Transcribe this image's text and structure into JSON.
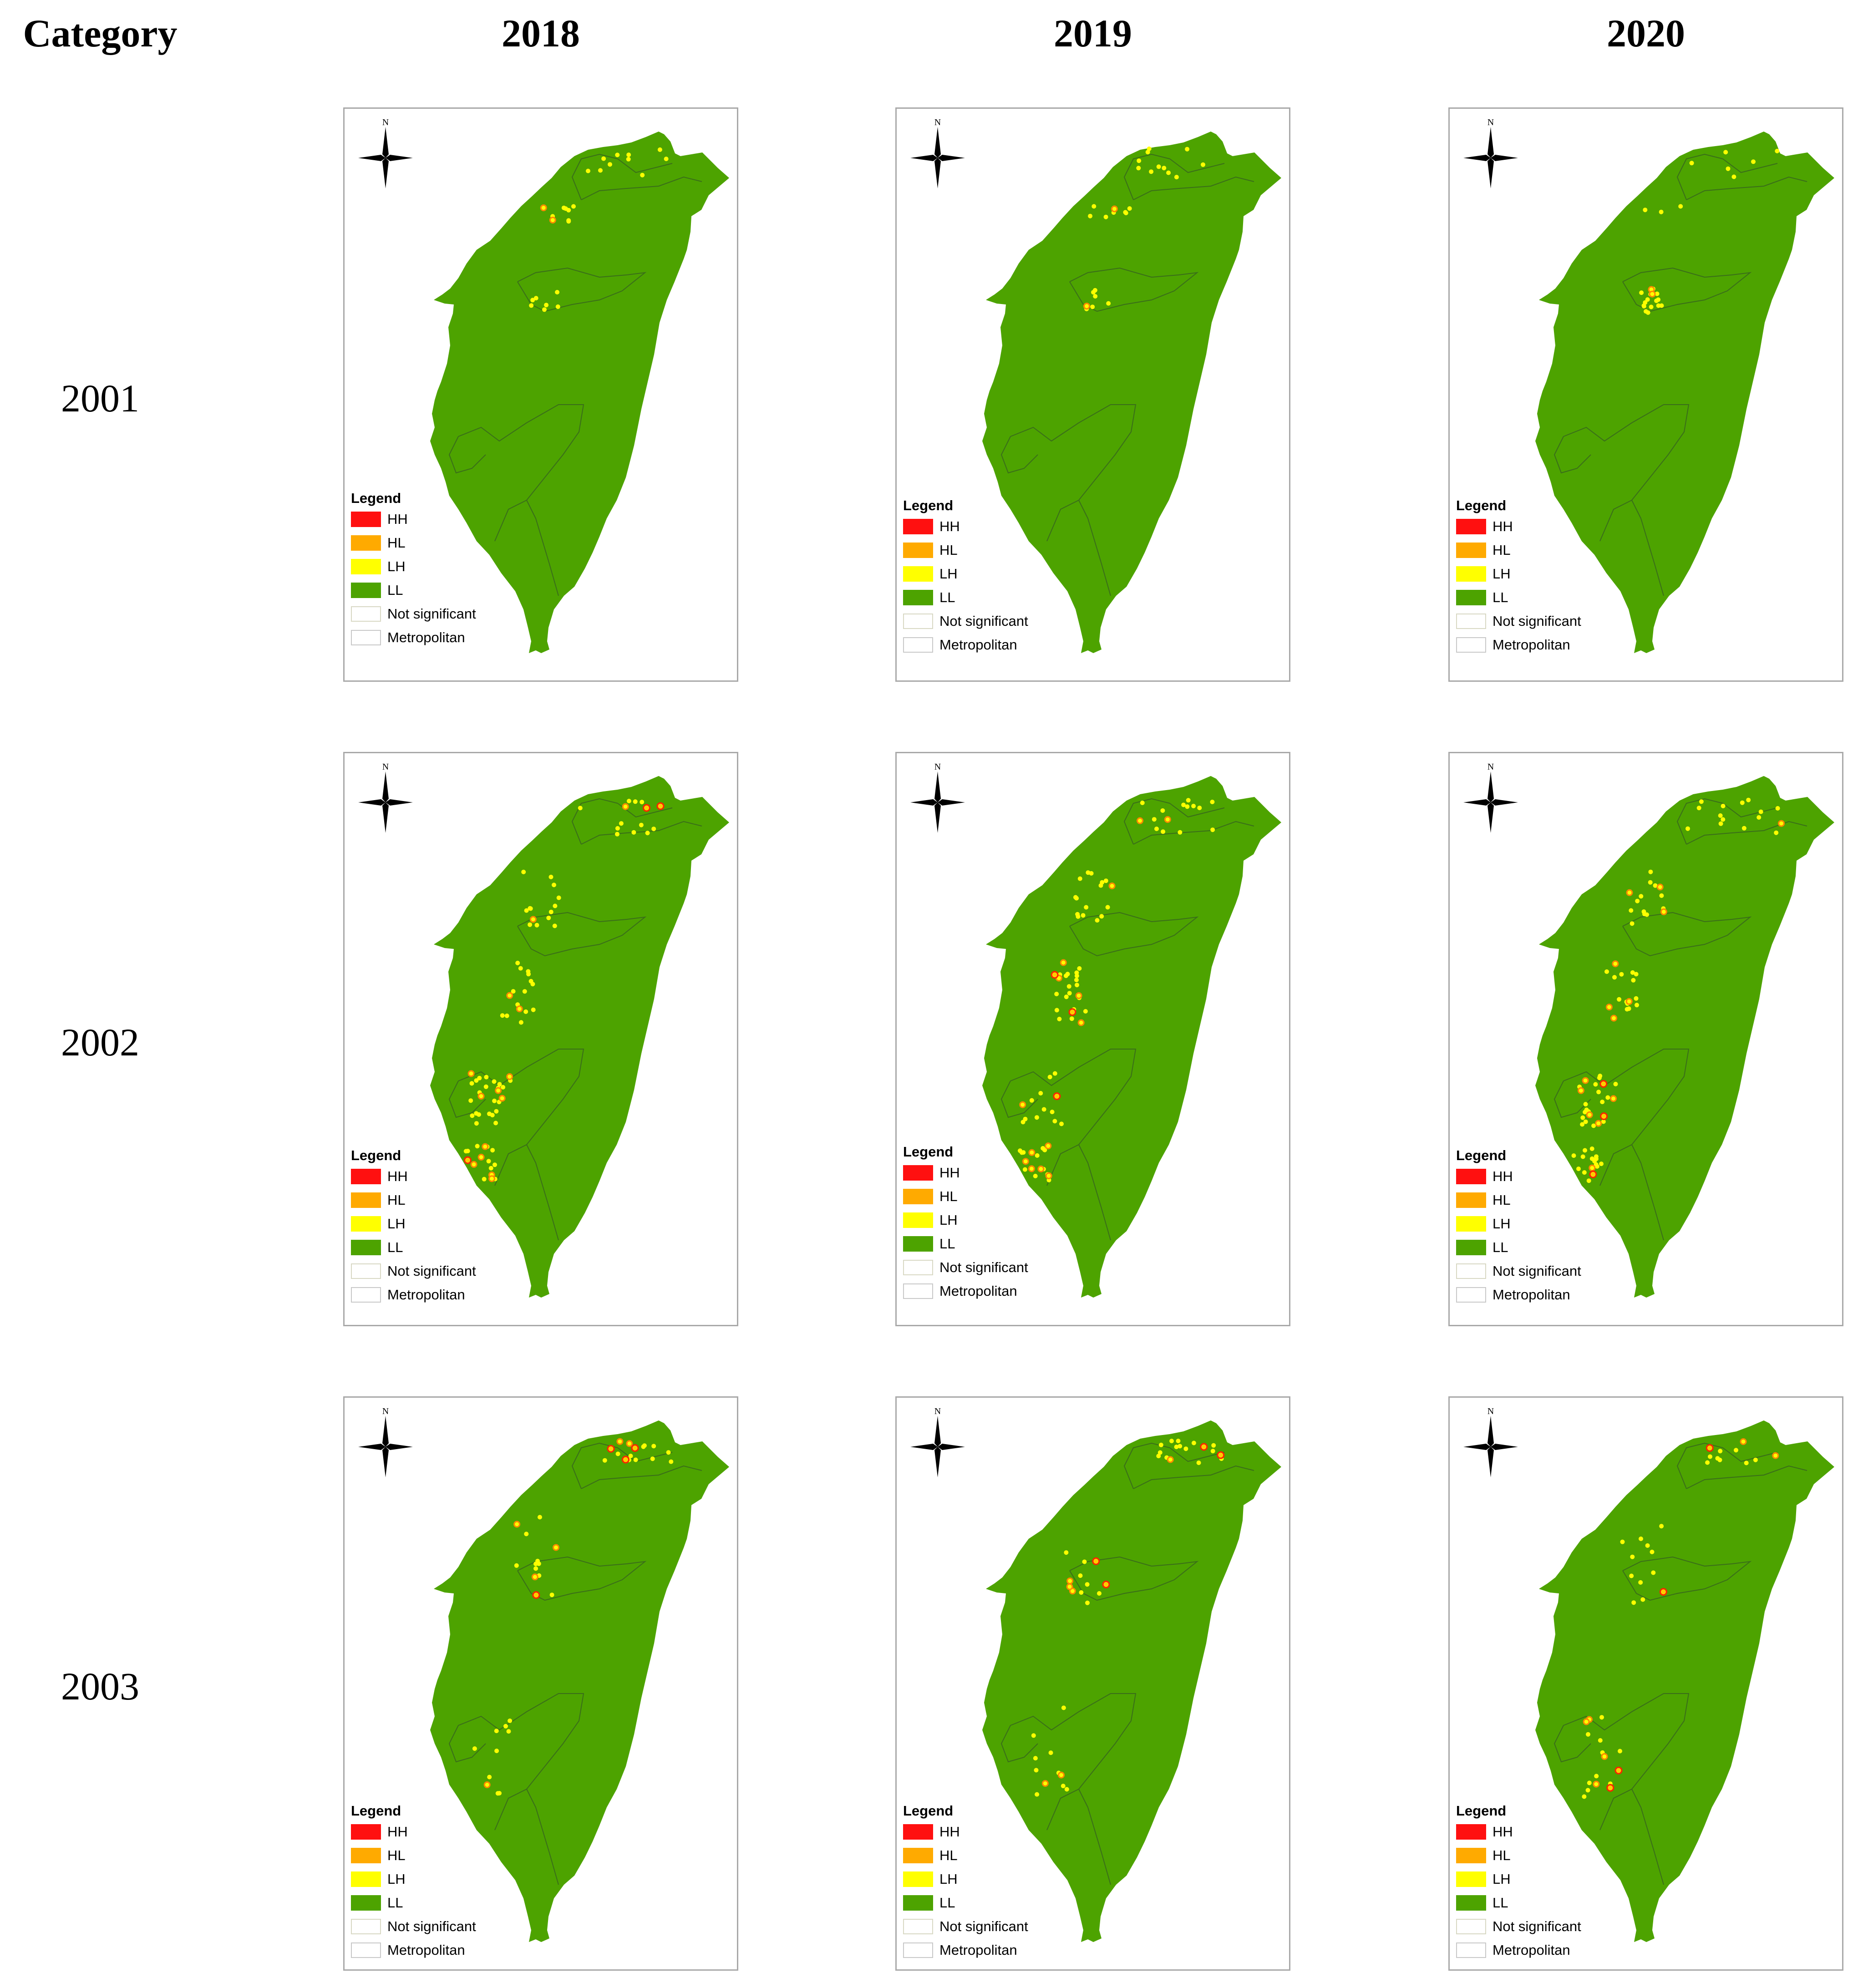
{
  "header": {
    "category_label": "Category",
    "columns": [
      "2018",
      "2019",
      "2020"
    ]
  },
  "rows": [
    "2001",
    "2002",
    "2003"
  ],
  "map": {
    "north_label": "N",
    "land_color": "#4da300",
    "boundary_color": "#3a6e1a"
  },
  "legend": {
    "title": "Legend",
    "items": [
      {
        "label": "HH",
        "color": "#ff1010"
      },
      {
        "label": "HL",
        "color": "#ffaa00"
      },
      {
        "label": "LH",
        "color": "#ffff00"
      },
      {
        "label": "LL",
        "color": "#4da300"
      },
      {
        "label": "Not significant",
        "color": "#ffffff"
      },
      {
        "label": "Metropolitan",
        "color": "#ffffff"
      }
    ]
  }
}
